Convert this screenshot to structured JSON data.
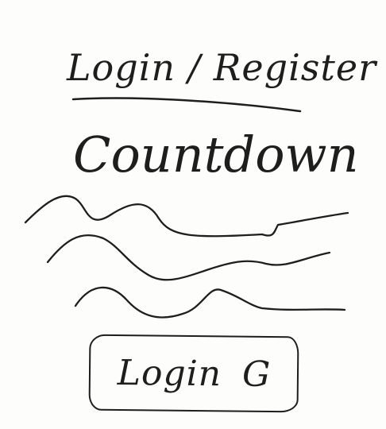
{
  "header": {
    "title": "Login / Register"
  },
  "main": {
    "countdown_label": "Countdown",
    "login_button": {
      "label": "Login",
      "icon_glyph": "G",
      "icon_name": "google-icon"
    }
  }
}
